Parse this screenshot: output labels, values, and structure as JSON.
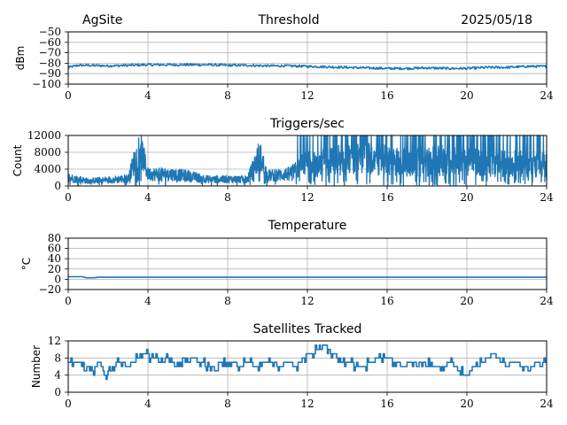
{
  "header": {
    "site": "AgSite",
    "title": "Threshold",
    "date": "2025/05/18"
  },
  "chart_data": [
    {
      "type": "line",
      "title": "",
      "ylabel": "dBm",
      "xlim": [
        0,
        24
      ],
      "ylim": [
        -100,
        -50
      ],
      "xticks": [
        "0",
        "4",
        "8",
        "12",
        "16",
        "20",
        "24"
      ],
      "yticks": [
        "−50",
        "−60",
        "−70",
        "−80",
        "−90",
        "−100"
      ],
      "ytick_values": [
        -50,
        -60,
        -70,
        -80,
        -90,
        -100
      ],
      "grid": true,
      "color": "#1f77b4",
      "series": [
        {
          "x": [
            0,
            0.5,
            1,
            2,
            3,
            4,
            5,
            6,
            7,
            8,
            9,
            10,
            11,
            12,
            13,
            14,
            15,
            16,
            17,
            18,
            19,
            20,
            21,
            22,
            23,
            24
          ],
          "y": [
            -84,
            -82,
            -82,
            -82.5,
            -82,
            -81.5,
            -81.5,
            -81.5,
            -81.5,
            -82,
            -82,
            -82.5,
            -82.5,
            -83,
            -83.5,
            -84,
            -84.5,
            -85,
            -85,
            -84.5,
            -85,
            -85,
            -84,
            -84,
            -83,
            -83
          ]
        }
      ]
    },
    {
      "type": "line",
      "title": "Triggers/sec",
      "ylabel": "Count",
      "xlim": [
        0,
        24
      ],
      "ylim": [
        0,
        12000
      ],
      "xticks": [
        "0",
        "4",
        "8",
        "12",
        "16",
        "20",
        "24"
      ],
      "yticks": [
        "0",
        "4000",
        "8000",
        "12000"
      ],
      "ytick_values": [
        0,
        4000,
        8000,
        12000
      ],
      "grid": true,
      "color": "#1f77b4",
      "series": [
        {
          "x": [
            0,
            1,
            2,
            3,
            3.6,
            4,
            5,
            6,
            7,
            8,
            9,
            9.6,
            10,
            11,
            12,
            12.5,
            13,
            14,
            15,
            16,
            17,
            18,
            19,
            20,
            21,
            22,
            23,
            24
          ],
          "y": [
            2500,
            1500,
            1800,
            2200,
            11500,
            3500,
            3500,
            3000,
            2000,
            2000,
            2000,
            9000,
            3000,
            3500,
            6000,
            6000,
            7000,
            7000,
            7500,
            7000,
            6500,
            6500,
            7000,
            6500,
            6500,
            6000,
            6000,
            5500
          ]
        }
      ]
    },
    {
      "type": "line",
      "title": "Temperature",
      "ylabel": "°C",
      "xlim": [
        0,
        24
      ],
      "ylim": [
        -20,
        80
      ],
      "xticks": [
        "0",
        "4",
        "8",
        "12",
        "16",
        "20",
        "24"
      ],
      "yticks": [
        "−20",
        "0",
        "20",
        "40",
        "60",
        "80"
      ],
      "ytick_values": [
        -20,
        0,
        20,
        40,
        60,
        80
      ],
      "grid": true,
      "color": "#1f77b4",
      "series": [
        {
          "x": [
            0,
            0.7,
            0.9,
            1.3,
            1.5,
            4,
            8,
            12,
            16,
            20,
            24
          ],
          "y": [
            5,
            5,
            3,
            3,
            4,
            4,
            4,
            4,
            4,
            4,
            4
          ]
        }
      ]
    },
    {
      "type": "line",
      "title": "Satellites Tracked",
      "ylabel": "Number",
      "xlim": [
        0,
        24
      ],
      "ylim": [
        0,
        12
      ],
      "xticks": [
        "0",
        "4",
        "8",
        "12",
        "16",
        "20",
        "24"
      ],
      "yticks": [
        "0",
        "4",
        "8",
        "12"
      ],
      "ytick_values": [
        0,
        4,
        8,
        12
      ],
      "grid": true,
      "color": "#1f77b4",
      "series": [
        {
          "x": [
            0,
            0.4,
            0.8,
            1.2,
            1.6,
            1.9,
            2.2,
            2.6,
            3.0,
            3.4,
            3.8,
            4.2,
            4.6,
            5.0,
            5.4,
            5.8,
            6.2,
            6.6,
            7.0,
            7.4,
            7.8,
            8.2,
            8.6,
            9.0,
            9.4,
            9.8,
            10.2,
            10.6,
            11.0,
            11.4,
            11.8,
            12.2,
            12.6,
            12.9,
            13.2,
            13.6,
            14.0,
            14.4,
            14.8,
            15.2,
            15.6,
            16.0,
            16.4,
            16.8,
            17.2,
            17.6,
            18.0,
            18.4,
            18.8,
            19.2,
            19.6,
            20.0,
            20.4,
            20.8,
            21.2,
            21.6,
            22.0,
            22.4,
            22.8,
            23.2,
            23.6,
            24
          ],
          "y": [
            7,
            7,
            6,
            5,
            7,
            3,
            6,
            7,
            6,
            8,
            9,
            8,
            7,
            8,
            6,
            8,
            8,
            7,
            6,
            5,
            7,
            7,
            6,
            7,
            6,
            7,
            7,
            6,
            7,
            6,
            8,
            9,
            10,
            11,
            9,
            8,
            7,
            6,
            6,
            7,
            8,
            8,
            7,
            6,
            7,
            6,
            7,
            6,
            6,
            7,
            5,
            4,
            6,
            7,
            9,
            8,
            6,
            7,
            6,
            6,
            7,
            7
          ]
        }
      ]
    }
  ]
}
